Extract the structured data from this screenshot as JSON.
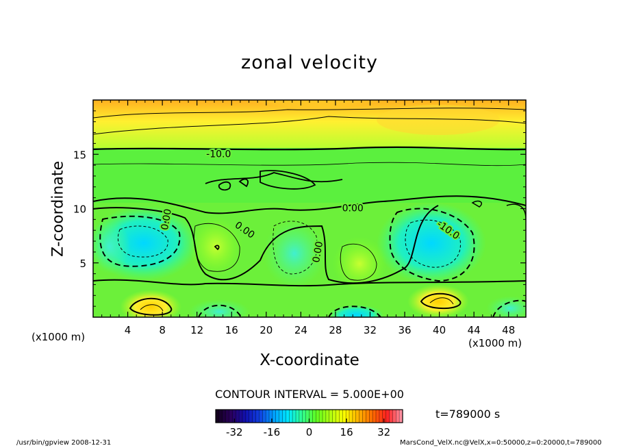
{
  "chart_data": {
    "type": "heatmap",
    "title": "zonal velocity",
    "xlabel": "X-coordinate",
    "ylabel": "Z-coordinate",
    "x_unit_label_left": "(x1000 m)",
    "x_unit_label_right": "(x1000 m)",
    "xlim": [
      0,
      50
    ],
    "ylim": [
      0,
      20
    ],
    "x_ticks": [
      4,
      8,
      12,
      16,
      20,
      24,
      28,
      32,
      36,
      40,
      44,
      48
    ],
    "y_ticks": [
      5,
      10,
      15
    ],
    "contour_labels": [
      {
        "text": "-10.0",
        "x": 14.5,
        "z": 15.0
      },
      {
        "text": "0.00",
        "x": 30.0,
        "z": 10.0
      },
      {
        "text": "0.00",
        "x": 8.5,
        "z": 9.0
      },
      {
        "text": "0.00",
        "x": 17.5,
        "z": 8.0
      },
      {
        "text": "0.00",
        "x": 26.0,
        "z": 6.0
      },
      {
        "text": "-10.0",
        "x": 41.0,
        "z": 8.0
      }
    ],
    "contour_interval": "CONTOUR INTERVAL = 5.000E+00",
    "colorbar": {
      "range": [
        -40,
        40
      ],
      "ticks": [
        -32,
        -16,
        0,
        16,
        32
      ],
      "colors": [
        "#140020",
        "#2a0060",
        "#1010b0",
        "#1040e0",
        "#00a0ff",
        "#00e8ff",
        "#30ff90",
        "#60ff20",
        "#b0ff10",
        "#ffff00",
        "#ffb000",
        "#ff6a00",
        "#ff2020",
        "#ff8fa0"
      ]
    },
    "time_label": "t=789000  s"
  },
  "footer": {
    "left": "/usr/bin/gpview   2008-12-31",
    "right": "MarsCond_VelX.nc@VelX,x=0:50000,z=0:20000,t=789000"
  }
}
